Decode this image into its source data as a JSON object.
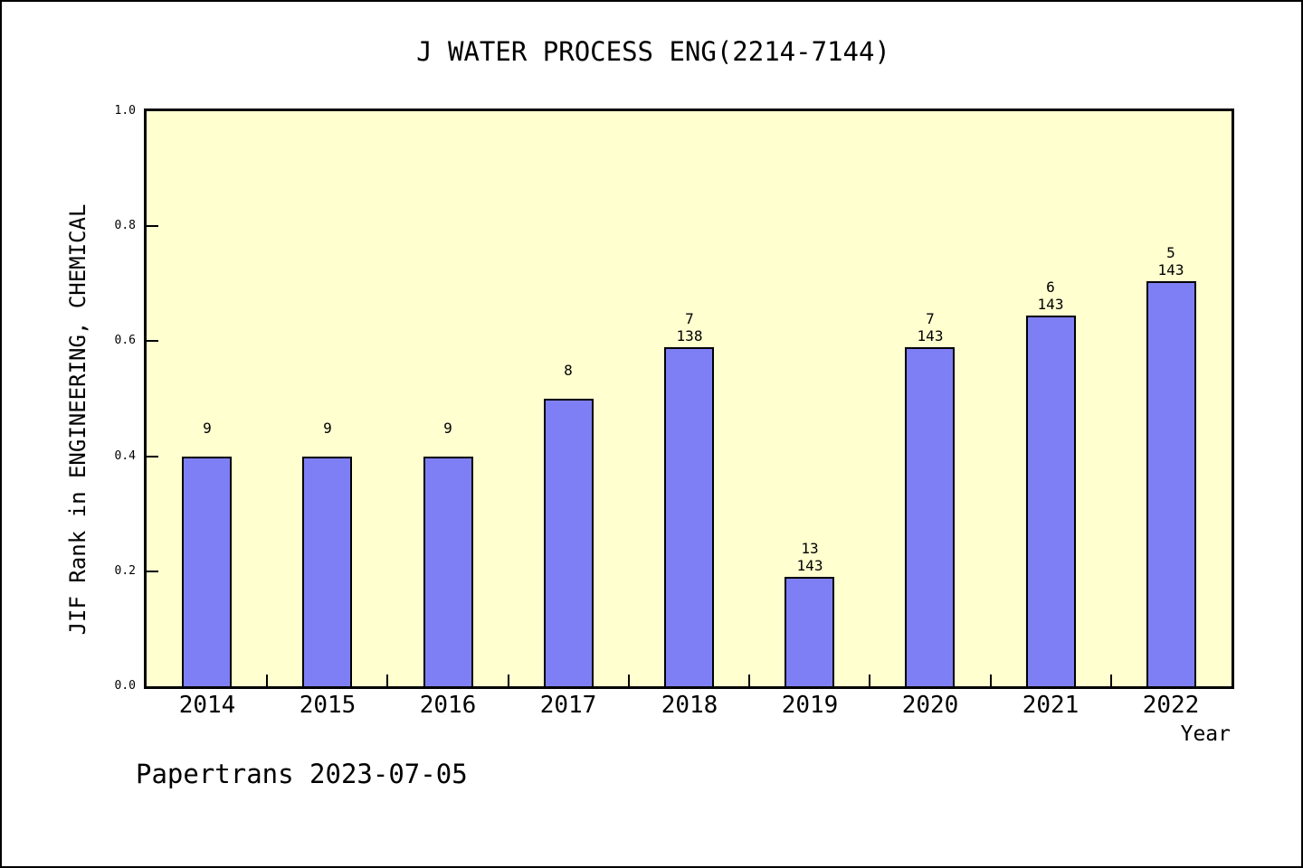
{
  "title": "J WATER PROCESS ENG(2214-7144)",
  "footer": "Papertrans 2023-07-05",
  "chart_data": {
    "type": "bar",
    "title": "J WATER PROCESS ENG(2214-7144)",
    "xlabel": "Year",
    "ylabel": "JIF Rank in ENGINEERING, CHEMICAL",
    "categories": [
      "2014",
      "2015",
      "2016",
      "2017",
      "2018",
      "2019",
      "2020",
      "2021",
      "2022"
    ],
    "values": [
      0.4,
      0.4,
      0.4,
      0.5,
      0.59,
      0.19,
      0.59,
      0.645,
      0.705
    ],
    "bar_labels": [
      [
        "9"
      ],
      [
        "9"
      ],
      [
        "9"
      ],
      [
        "8"
      ],
      [
        "7",
        "138"
      ],
      [
        "13",
        "143"
      ],
      [
        "7",
        "143"
      ],
      [
        "6",
        "143"
      ],
      [
        "5",
        "143"
      ]
    ],
    "ylim": [
      0.0,
      1.0
    ],
    "yticks": [
      0.0,
      0.2,
      0.4,
      0.6,
      0.8,
      1.0
    ],
    "ytick_labels": [
      "0.0",
      "0.2",
      "0.4",
      "0.6",
      "0.8",
      "1.0"
    ],
    "grid": false,
    "legend_position": "none",
    "colors": {
      "bar_fill": "#7F7FF5",
      "bar_border": "#000000",
      "plot_bg": "#FFFFD0",
      "frame": "#000000",
      "page_bg": "#FFFFFF",
      "text": "#000000"
    }
  }
}
